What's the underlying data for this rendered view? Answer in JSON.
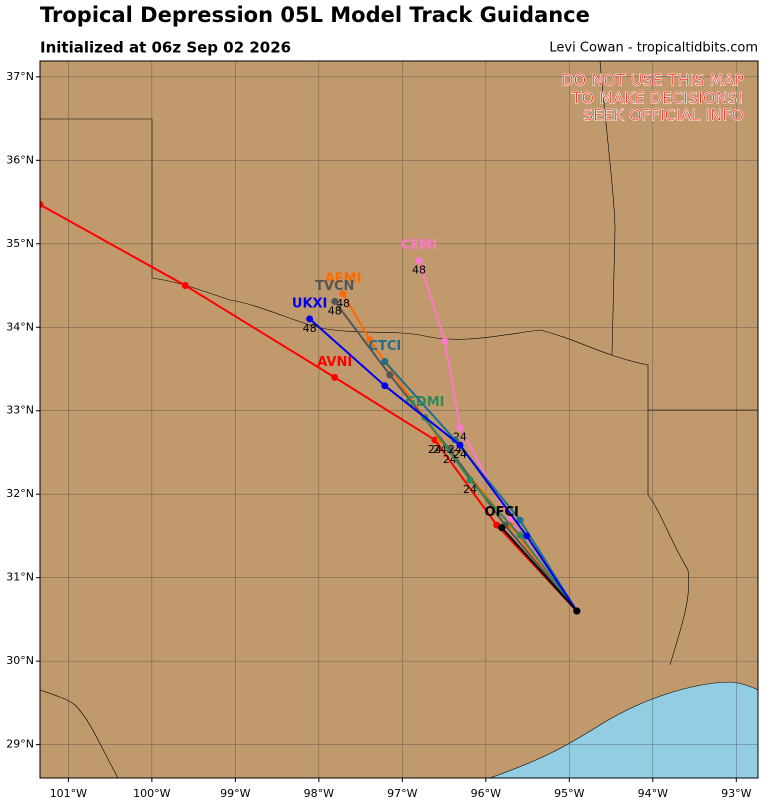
{
  "header": {
    "title": "Tropical Depression 05L Model Track Guidance",
    "subtitle": "Initialized at 06z Sep 02 2026",
    "credit": "Levi Cowan - tropicaltidbits.com",
    "warning": [
      "DO NOT USE THIS MAP",
      "TO MAKE DECISIONS!",
      "SEEK OFFICIAL INFO"
    ]
  },
  "map": {
    "xlim": [
      -101.34,
      -92.74
    ],
    "ylim": [
      28.6,
      37.19
    ],
    "xticks": [
      {
        "value": -101,
        "label": "101°W"
      },
      {
        "value": -100,
        "label": "100°W"
      },
      {
        "value": -99,
        "label": "99°W"
      },
      {
        "value": -98,
        "label": "98°W"
      },
      {
        "value": -97,
        "label": "97°W"
      },
      {
        "value": -96,
        "label": "96°W"
      },
      {
        "value": -95,
        "label": "95°W"
      },
      {
        "value": -94,
        "label": "94°W"
      },
      {
        "value": -93,
        "label": "93°W"
      }
    ],
    "yticks": [
      {
        "value": 29,
        "label": "29°N"
      },
      {
        "value": 30,
        "label": "30°N"
      },
      {
        "value": 31,
        "label": "31°N"
      },
      {
        "value": 32,
        "label": "32°N"
      },
      {
        "value": 33,
        "label": "33°N"
      },
      {
        "value": 34,
        "label": "34°N"
      },
      {
        "value": 35,
        "label": "35°N"
      },
      {
        "value": 36,
        "label": "36°N"
      },
      {
        "value": 37,
        "label": "37°N"
      }
    ],
    "grid": true,
    "tracks": [
      {
        "name": "AVNI",
        "color": "#ff0000",
        "lon": [
          -94.91,
          -95.87,
          -96.61,
          -97.81,
          -99.6,
          -101.34
        ],
        "lat": [
          30.6,
          31.63,
          32.65,
          33.4,
          34.5,
          35.47
        ],
        "labels": [
          null,
          null,
          "24",
          null,
          null,
          null
        ]
      },
      {
        "name": "CEMI",
        "color": "#ff77cc",
        "lon": [
          -94.91,
          -95.71,
          -96.31,
          -96.49,
          -96.8
        ],
        "lat": [
          30.6,
          31.69,
          32.8,
          33.83,
          34.8
        ],
        "labels": [
          null,
          null,
          "24",
          null,
          "48"
        ]
      },
      {
        "name": "AEMI",
        "color": "#ff6a00",
        "lon": [
          -94.91,
          -95.71,
          -96.55,
          -97.39,
          -97.71
        ],
        "lat": [
          30.6,
          31.63,
          32.65,
          33.85,
          34.4
        ],
        "labels": [
          null,
          null,
          "24",
          null,
          "48"
        ]
      },
      {
        "name": "TVCN",
        "color": "#555555",
        "lon": [
          -94.91,
          -95.77,
          -96.43,
          -97.15,
          -97.81
        ],
        "lat": [
          30.6,
          31.63,
          32.53,
          33.43,
          34.31
        ],
        "labels": [
          null,
          null,
          "24",
          null,
          "48"
        ]
      },
      {
        "name": "GDMI",
        "color": "#2e8b57",
        "lon": [
          -94.91,
          -95.59,
          -96.19,
          -96.73
        ],
        "lat": [
          30.6,
          31.51,
          32.17,
          32.92
        ],
        "labels": [
          null,
          null,
          "24",
          null
        ]
      },
      {
        "name": "CTCI",
        "color": "#1f6f8b",
        "lon": [
          -94.91,
          -95.59,
          -96.37,
          -97.21
        ],
        "lat": [
          30.6,
          31.69,
          32.65,
          33.59
        ],
        "labels": [
          null,
          null,
          "24",
          null
        ]
      },
      {
        "name": "UKXI",
        "color": "#0000ee",
        "lon": [
          -94.91,
          -95.51,
          -96.31,
          -97.21,
          -98.11
        ],
        "lat": [
          30.6,
          31.5,
          32.59,
          33.3,
          34.1
        ],
        "labels": [
          null,
          null,
          "24",
          null,
          "48"
        ]
      },
      {
        "name": "OFCI",
        "color": "#000000",
        "lon": [
          -94.91,
          -95.81
        ],
        "lat": [
          30.6,
          31.6
        ],
        "labels": [
          null,
          null
        ]
      }
    ]
  }
}
